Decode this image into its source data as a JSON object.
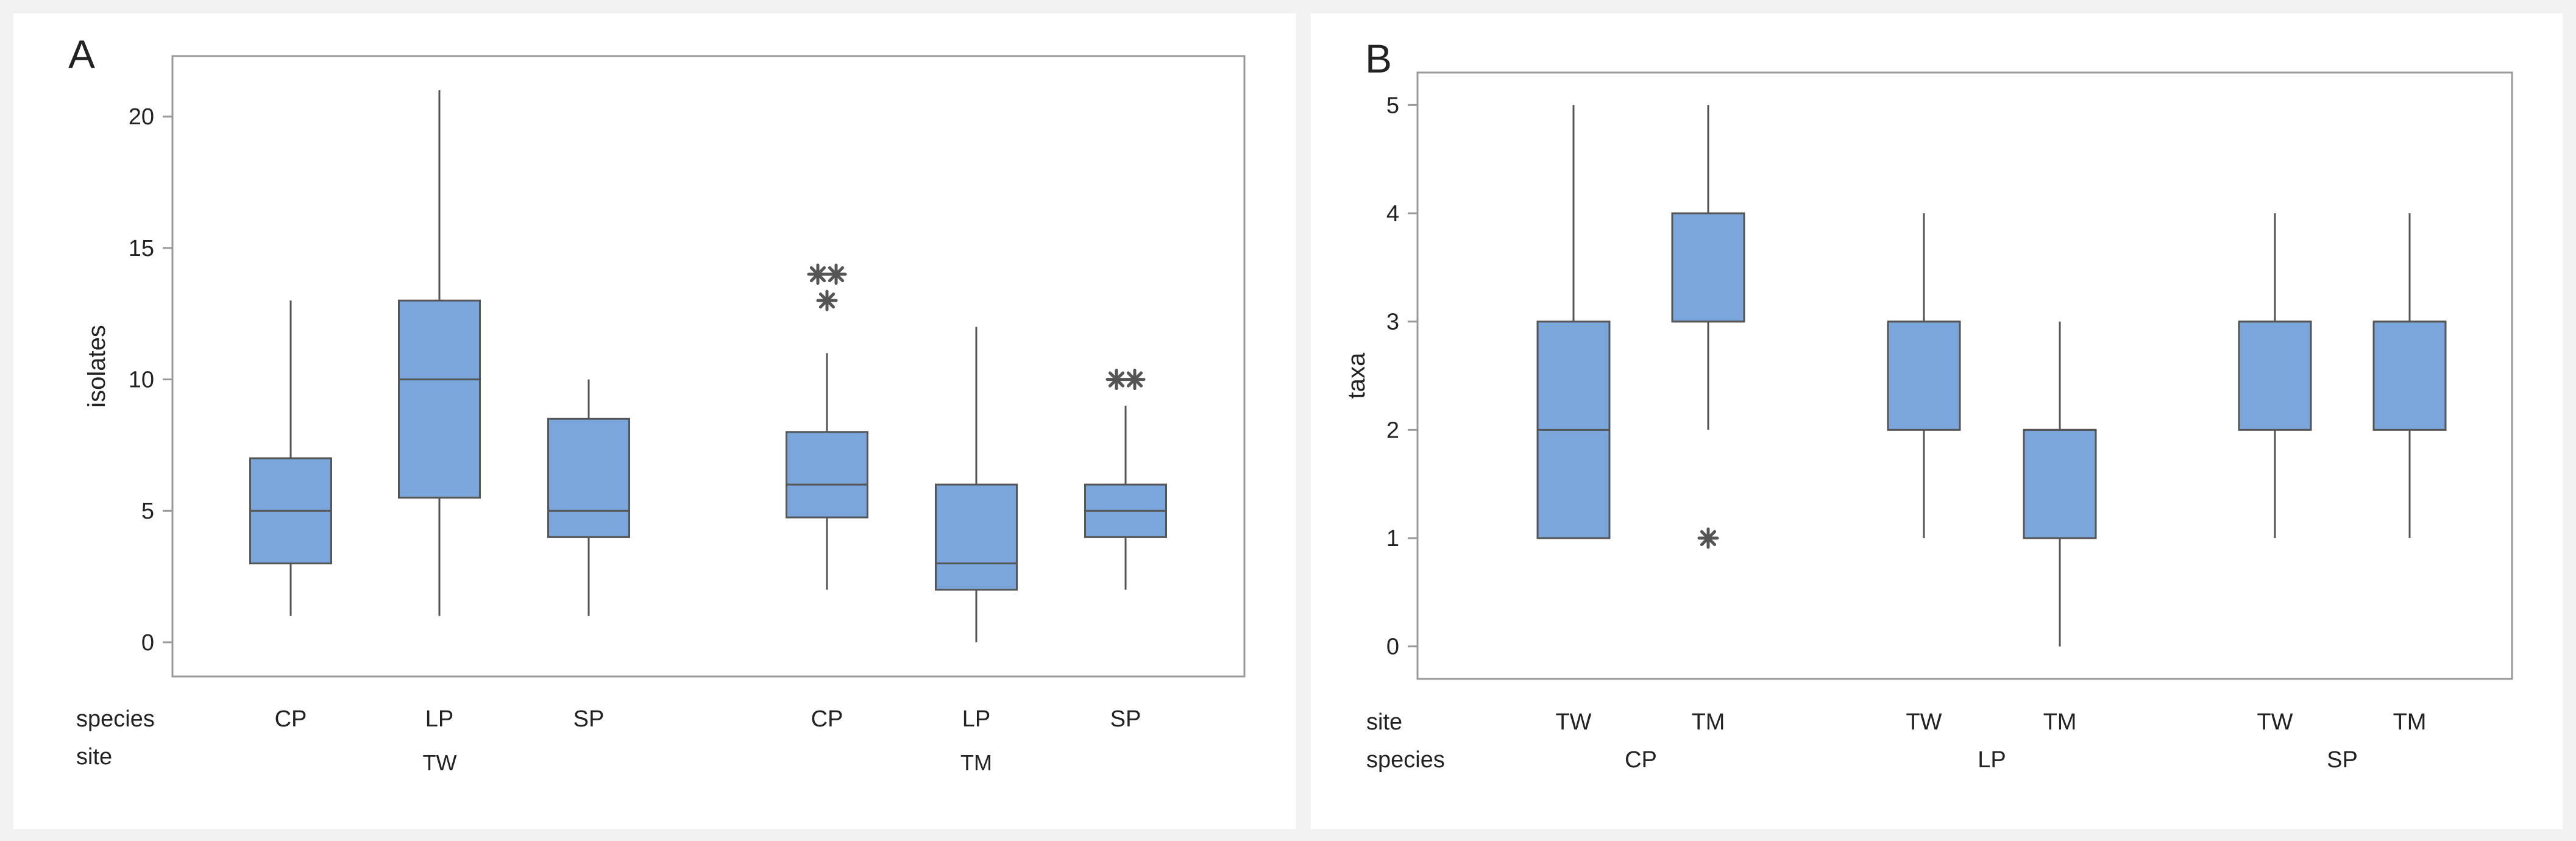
{
  "chart_data": [
    {
      "type": "boxplot",
      "panel_label": "A",
      "ylabel": "isolates",
      "ylim": [
        -1.3,
        22.3
      ],
      "yticks": [
        "0",
        "5",
        "10",
        "15",
        "20"
      ],
      "row_labels": {
        "inner": "species",
        "outer": "site"
      },
      "groups": [
        {
          "name": "TW",
          "categories": [
            "CP",
            "LP",
            "SP"
          ]
        },
        {
          "name": "TM",
          "categories": [
            "CP",
            "LP",
            "SP"
          ]
        }
      ],
      "boxes": [
        {
          "group": "TW",
          "category": "CP",
          "whisker_low": 1,
          "q1": 3,
          "median": 5,
          "q3": 7,
          "whisker_high": 13,
          "outliers": []
        },
        {
          "group": "TW",
          "category": "LP",
          "whisker_low": 1,
          "q1": 5.5,
          "median": 10,
          "q3": 13,
          "whisker_high": 21,
          "outliers": []
        },
        {
          "group": "TW",
          "category": "SP",
          "whisker_low": 1,
          "q1": 4,
          "median": 5,
          "q3": 8.5,
          "whisker_high": 10,
          "outliers": []
        },
        {
          "group": "TM",
          "category": "CP",
          "whisker_low": 2,
          "q1": 4.75,
          "median": 6,
          "q3": 8,
          "whisker_high": 11,
          "outliers": [
            13,
            14,
            14
          ]
        },
        {
          "group": "TM",
          "category": "LP",
          "whisker_low": 0,
          "q1": 2,
          "median": 3,
          "q3": 6,
          "whisker_high": 12,
          "outliers": []
        },
        {
          "group": "TM",
          "category": "SP",
          "whisker_low": 2,
          "q1": 4,
          "median": 5,
          "q3": 6,
          "whisker_high": 9,
          "outliers": [
            10,
            10
          ]
        }
      ]
    },
    {
      "type": "boxplot",
      "panel_label": "B",
      "ylabel": "taxa",
      "ylim": [
        -0.3,
        5.3
      ],
      "yticks": [
        "0",
        "1",
        "2",
        "3",
        "4",
        "5"
      ],
      "row_labels": {
        "inner": "site",
        "outer": "species"
      },
      "groups": [
        {
          "name": "CP",
          "categories": [
            "TW",
            "TM"
          ]
        },
        {
          "name": "LP",
          "categories": [
            "TW",
            "TM"
          ]
        },
        {
          "name": "SP",
          "categories": [
            "TW",
            "TM"
          ]
        }
      ],
      "boxes": [
        {
          "group": "CP",
          "category": "TW",
          "whisker_low": 1,
          "q1": 1,
          "median": 2,
          "q3": 3,
          "whisker_high": 5,
          "outliers": []
        },
        {
          "group": "CP",
          "category": "TM",
          "whisker_low": 2,
          "q1": 3,
          "median": 3,
          "q3": 4,
          "whisker_high": 5,
          "outliers": [
            1
          ]
        },
        {
          "group": "LP",
          "category": "TW",
          "whisker_low": 1,
          "q1": 2,
          "median": 3,
          "q3": 3,
          "whisker_high": 4,
          "outliers": []
        },
        {
          "group": "LP",
          "category": "TM",
          "whisker_low": 0,
          "q1": 1,
          "median": 2,
          "q3": 2,
          "whisker_high": 3,
          "outliers": []
        },
        {
          "group": "SP",
          "category": "TW",
          "whisker_low": 1,
          "q1": 2,
          "median": 3,
          "q3": 3,
          "whisker_high": 4,
          "outliers": []
        },
        {
          "group": "SP",
          "category": "TM",
          "whisker_low": 1,
          "q1": 2,
          "median": 3,
          "q3": 3,
          "whisker_high": 4,
          "outliers": []
        }
      ]
    }
  ],
  "colors": {
    "box_fill": "#7ba6db",
    "line": "#555555",
    "frame": "#999999",
    "text": "#222222"
  }
}
